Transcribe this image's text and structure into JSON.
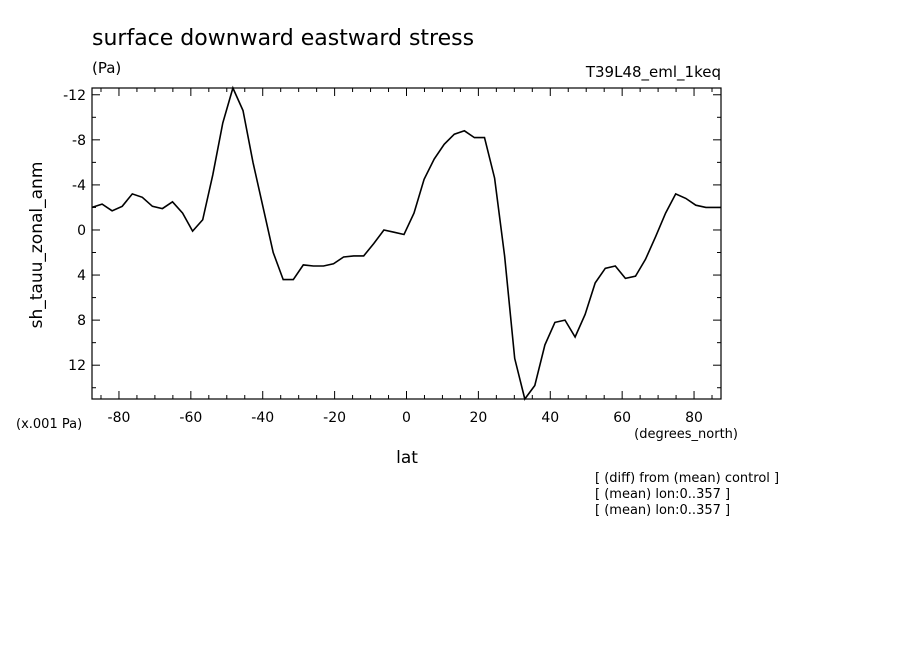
{
  "chart_data": {
    "type": "line",
    "title": "surface downward eastward stress",
    "units": "(Pa)",
    "experiment": "T39L48_eml_1keq",
    "xlabel": "lat",
    "x_units": "(degrees_north)",
    "ylabel": "sh_tauu_zonal_anm",
    "y_scale_note": "(x.001 Pa)",
    "xlim": [
      -87.5,
      87.5
    ],
    "ylim": [
      -12.6,
      15
    ],
    "y_inverted": true,
    "x_ticks": [
      "-80",
      "-60",
      "-40",
      "-20",
      "0",
      "20",
      "40",
      "60",
      "80"
    ],
    "x_tick_values": [
      -80,
      -60,
      -40,
      -20,
      0,
      20,
      40,
      60,
      80
    ],
    "y_ticks": [
      "-12",
      "-8",
      "-4",
      "0",
      "4",
      "8",
      "12"
    ],
    "y_tick_values": [
      -12,
      -8,
      -4,
      0,
      4,
      8,
      12
    ],
    "notes": [
      "[ (diff) from (mean) control ]",
      "[ (mean) lon:0..357 ]",
      "[ (mean) lon:0..357 ]"
    ],
    "series": [
      {
        "x": [
          -87.5,
          -84.7,
          -81.9,
          -79.1,
          -76.3,
          -73.5,
          -70.7,
          -67.9,
          -65.1,
          -62.3,
          -59.5,
          -56.7,
          -53.9,
          -51.1,
          -48.3,
          -45.5,
          -42.7,
          -39.9,
          -37.1,
          -34.3,
          -31.5,
          -28.7,
          -25.9,
          -23.1,
          -20.3,
          -17.5,
          -14.7,
          -11.9,
          -9.1,
          -6.3,
          -3.5,
          -0.7,
          2.1,
          4.9,
          7.7,
          10.5,
          13.3,
          16.1,
          18.9,
          21.7,
          24.5,
          27.3,
          30.1,
          32.9,
          35.7,
          38.5,
          41.3,
          44.1,
          46.9,
          49.7,
          52.5,
          55.3,
          58.1,
          60.9,
          63.7,
          66.5,
          69.3,
          72.1,
          74.9,
          77.7,
          80.5,
          83.3,
          86.1,
          87.5
        ],
        "y": [
          -2.0,
          -2.3,
          -1.7,
          -2.1,
          -3.2,
          -2.9,
          -2.1,
          -1.9,
          -2.5,
          -1.5,
          0.1,
          -0.9,
          -4.9,
          -9.5,
          -12.6,
          -10.6,
          -6.0,
          -2.0,
          2.0,
          4.4,
          4.4,
          3.1,
          3.2,
          3.2,
          3.0,
          2.4,
          2.3,
          2.3,
          1.2,
          0.0,
          0.2,
          0.4,
          -1.5,
          -4.5,
          -6.3,
          -7.6,
          -8.5,
          -8.8,
          -8.2,
          -8.2,
          -4.6,
          2.3,
          11.4,
          15.0,
          13.8,
          10.2,
          8.2,
          8.0,
          9.5,
          7.5,
          4.7,
          3.4,
          3.2,
          4.3,
          4.1,
          2.6,
          0.6,
          -1.5,
          -3.2,
          -2.8,
          -2.2,
          -2.0,
          -2.0,
          -2.0
        ]
      }
    ]
  }
}
